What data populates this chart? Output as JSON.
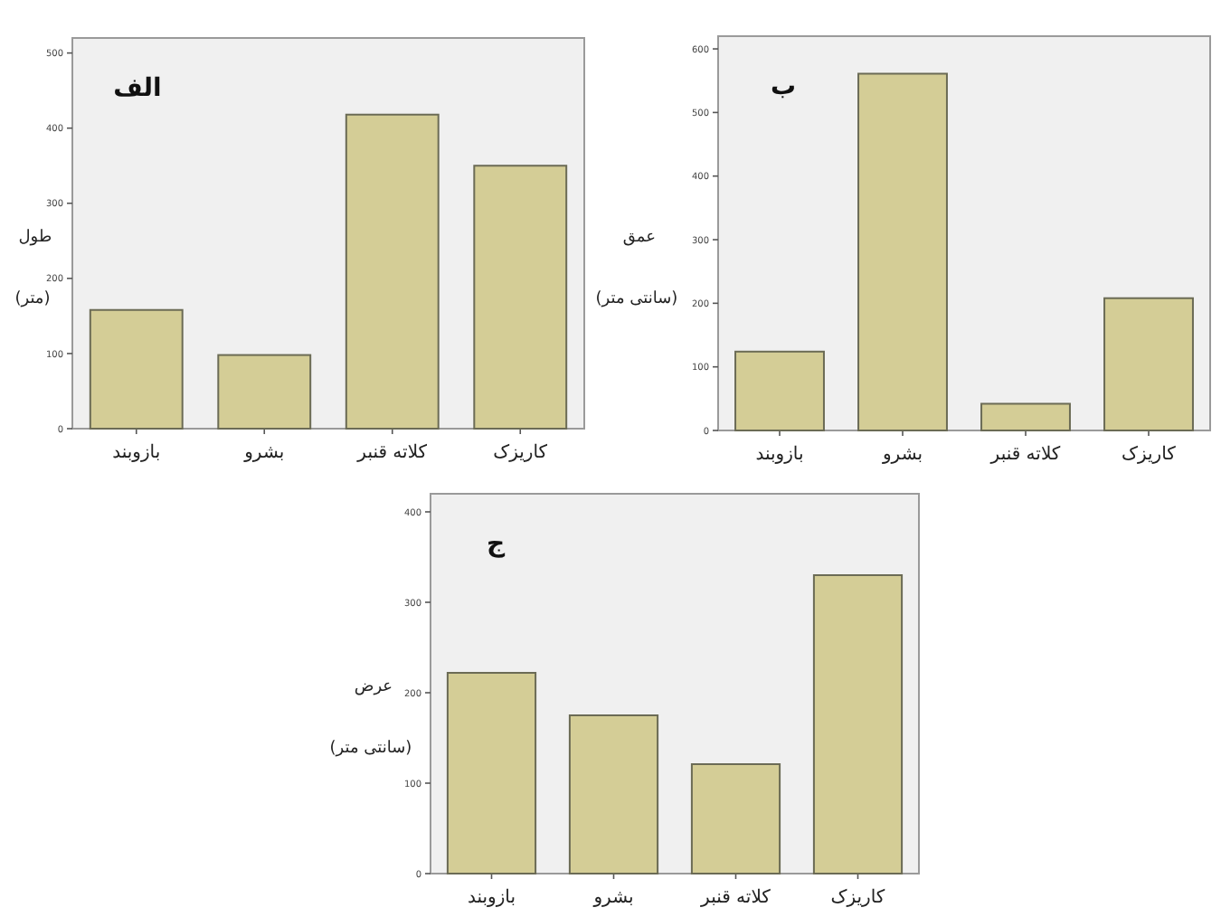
{
  "chart_data": [
    {
      "type": "bar",
      "title": "الف",
      "ylabel": "طول (متر)",
      "categories": [
        "بازوبند",
        "بشرو",
        "کلاته قنبر",
        "کاریزک"
      ],
      "values": [
        158,
        98,
        418,
        350
      ],
      "color": "#d4cd96",
      "ylim": [
        0,
        520
      ],
      "yticks": [
        0,
        100,
        200,
        300,
        400,
        500
      ]
    },
    {
      "type": "bar",
      "title": "ب",
      "ylabel": "عمق (سانتی متر)",
      "categories": [
        "بازوبند",
        "بشرو",
        "کلاته قنبر",
        "کاریزک"
      ],
      "values": [
        124,
        561,
        42,
        208
      ],
      "color": "#d4cd96",
      "ylim": [
        0,
        620
      ],
      "yticks": [
        0,
        100,
        200,
        300,
        400,
        500,
        600
      ]
    },
    {
      "type": "bar",
      "title": "ج",
      "ylabel": "عرض (سانتی متر)",
      "categories": [
        "بازوبند",
        "بشرو",
        "کلاته قنبر",
        "کاریزک"
      ],
      "values": [
        222,
        175,
        121,
        330
      ],
      "color": "#d4cd96",
      "ylim": [
        0,
        420
      ],
      "yticks": [
        0,
        100,
        200,
        300,
        400
      ]
    }
  ]
}
